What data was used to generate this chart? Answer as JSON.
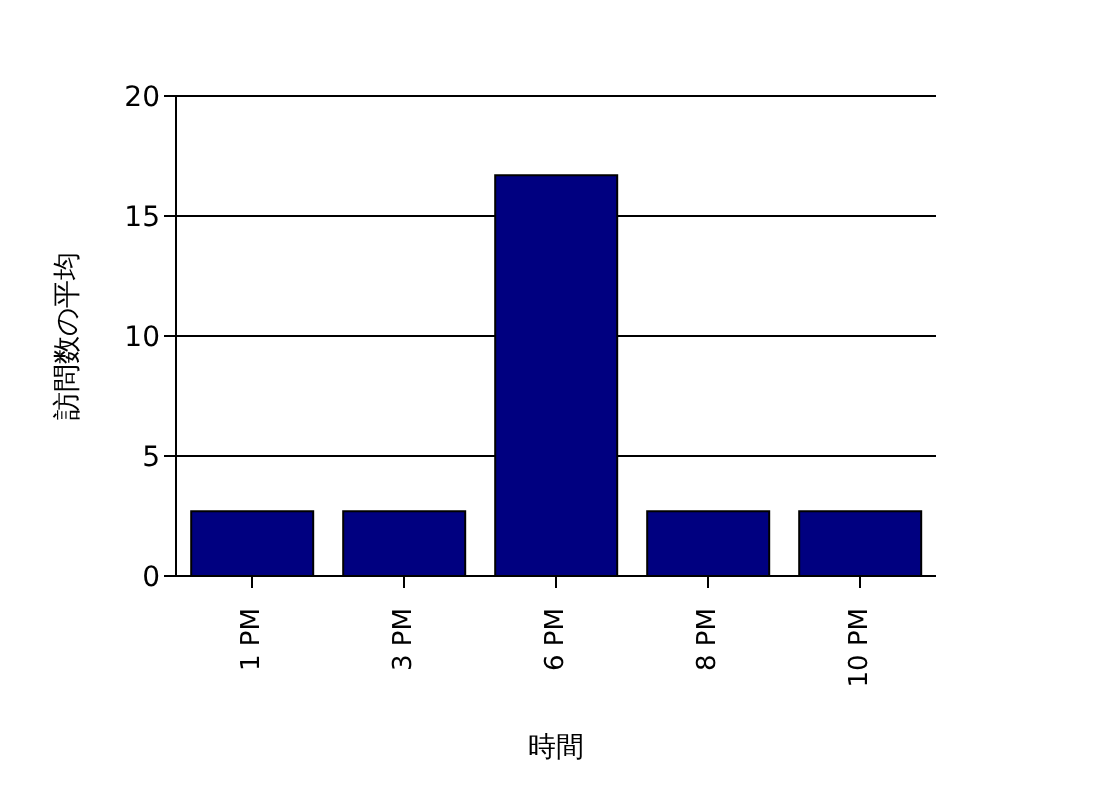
{
  "chart_data": {
    "type": "bar",
    "xlabel": "時間",
    "ylabel": "訪問数の平均",
    "categories": [
      "1 PM",
      "3 PM",
      "6 PM",
      "8 PM",
      "10 PM"
    ],
    "series": [
      {
        "color": "#000080",
        "values": [
          2.7,
          2.7,
          16.7,
          2.7,
          2.7
        ]
      }
    ],
    "ylim": [
      0,
      20
    ],
    "yticks": [
      0,
      5,
      10,
      15,
      20
    ],
    "grid": "y"
  }
}
